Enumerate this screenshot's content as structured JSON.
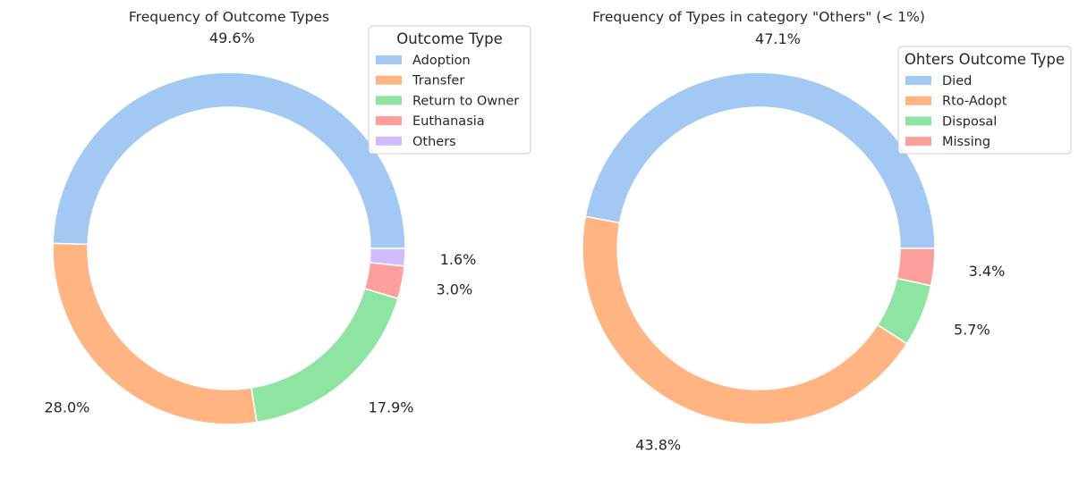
{
  "chart_data": [
    {
      "type": "pie",
      "style": "donut",
      "title": "Frequency of Outcome Types",
      "legend_title": "Outcome Type",
      "legend_position": "top-right",
      "labels": [
        "Adoption",
        "Transfer",
        "Return to Owner",
        "Euthanasia",
        "Others"
      ],
      "values": [
        49.6,
        28.0,
        17.9,
        3.0,
        1.6
      ],
      "value_labels": [
        "49.6%",
        "28.0%",
        "17.9%",
        "3.0%",
        "1.6%"
      ],
      "colors": [
        "#a1c9f4",
        "#ffb482",
        "#8de5a1",
        "#ff9f9b",
        "#d0bbff"
      ]
    },
    {
      "type": "pie",
      "style": "donut",
      "title": "Frequency of Types in category \"Others\" (< 1%)",
      "legend_title": "Ohters Outcome Type",
      "legend_position": "top-right",
      "labels": [
        "Died",
        "Rto-Adopt",
        "Disposal",
        "Missing"
      ],
      "values": [
        47.1,
        43.8,
        5.7,
        3.4
      ],
      "value_labels": [
        "47.1%",
        "43.8%",
        "5.7%",
        "3.4%"
      ],
      "colors": [
        "#a1c9f4",
        "#ffb482",
        "#8de5a1",
        "#ff9f9b"
      ]
    }
  ]
}
